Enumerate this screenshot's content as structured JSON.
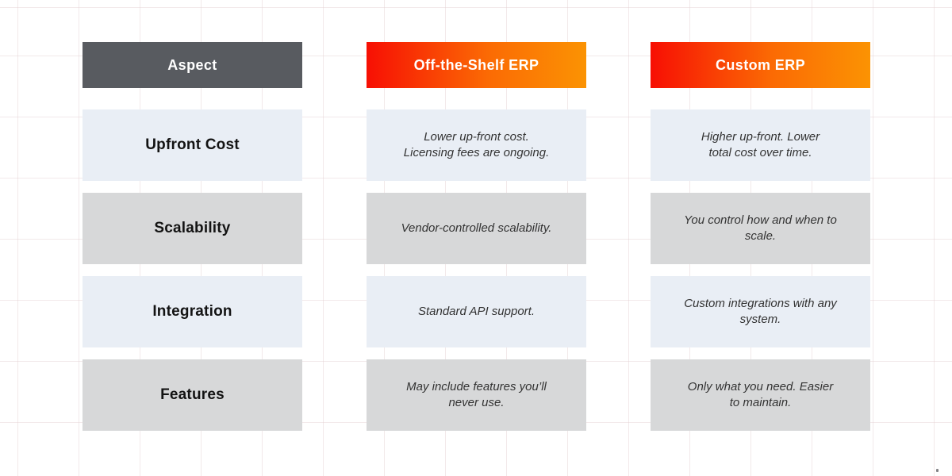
{
  "colors": {
    "aspect_header_bg": "#585b60",
    "erp_header_gradient_start": "#f70f04",
    "erp_header_gradient_end": "#fb9303",
    "row_blue_bg": "#e9eef5",
    "row_gray_bg": "#d7d8d9",
    "header_text": "#ffffff",
    "body_text": "#333333"
  },
  "table": {
    "columns": [
      {
        "label": "Aspect"
      },
      {
        "label": "Off-the-Shelf ERP"
      },
      {
        "label": "Custom ERP"
      }
    ],
    "rows": [
      {
        "aspect": "Upfront Cost",
        "offtheshelf": "Lower up-front cost.\nLicensing fees are ongoing.",
        "custom": "Higher up-front. Lower\ntotal cost over time.",
        "tone": "blue"
      },
      {
        "aspect": "Scalability",
        "offtheshelf": "Vendor-controlled scalability.",
        "custom": "You control how and when to\nscale.",
        "tone": "gray"
      },
      {
        "aspect": "Integration",
        "offtheshelf": "Standard API support.",
        "custom": "Custom integrations with any\nsystem.",
        "tone": "blue"
      },
      {
        "aspect": "Features",
        "offtheshelf": "May include features you’ll\nnever use.",
        "custom": "Only what you need. Easier\nto maintain.",
        "tone": "gray"
      }
    ]
  }
}
